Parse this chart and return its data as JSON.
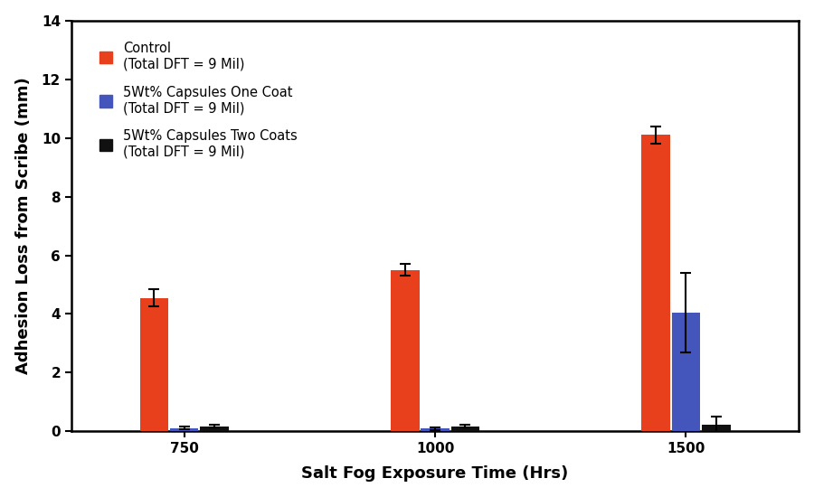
{
  "time_points": [
    750,
    1000,
    1500
  ],
  "series": [
    {
      "label": "Control\n(Total DFT = 9 Mil)",
      "color": "#E8401C",
      "values": [
        4.55,
        5.5,
        10.1
      ],
      "errors": [
        0.3,
        0.2,
        0.3
      ]
    },
    {
      "label": "5Wt% Capsules One Coat\n(Total DFT = 9 Mil)",
      "color": "#4455BB",
      "values": [
        0.12,
        0.1,
        4.05
      ],
      "errors": [
        0.05,
        0.05,
        1.35
      ]
    },
    {
      "label": "5Wt% Capsules Two Coats\n(Total DFT = 9 Mil)",
      "color": "#111111",
      "values": [
        0.18,
        0.18,
        0.22
      ],
      "errors": [
        0.04,
        0.04,
        0.28
      ]
    }
  ],
  "ylabel": "Adhesion Loss from Scribe (mm)",
  "xlabel": "Salt Fog Exposure Time (Hrs)",
  "ylim": [
    0,
    14
  ],
  "yticks": [
    0,
    2,
    4,
    6,
    8,
    10,
    12,
    14
  ],
  "bar_width": 0.12,
  "figsize": [
    9.0,
    5.5
  ],
  "dpi": 100,
  "background_color": "#FFFFFF",
  "legend_fontsize": 10.5,
  "axis_label_fontsize": 13,
  "tick_fontsize": 11
}
